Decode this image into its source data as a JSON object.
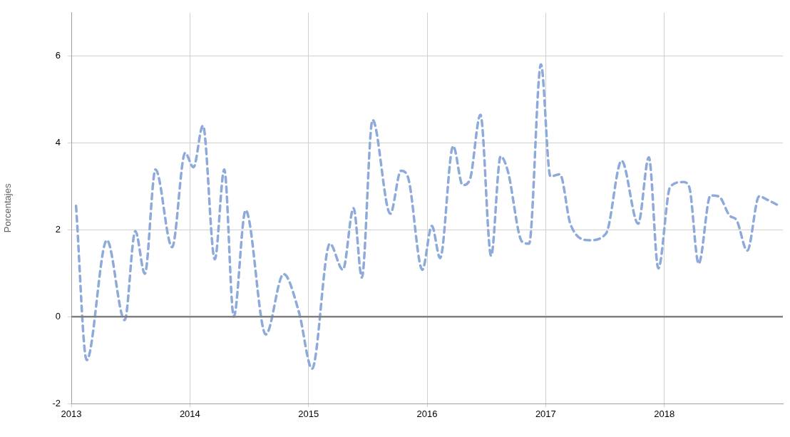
{
  "chart_data": {
    "type": "line",
    "ylabel": "Porcentajes",
    "x": [
      2013.04,
      2013.13,
      2013.3,
      2013.45,
      2013.54,
      2013.62,
      2013.71,
      2013.85,
      2013.96,
      2014.03,
      2014.11,
      2014.21,
      2014.29,
      2014.37,
      2014.47,
      2014.64,
      2014.79,
      2014.92,
      2015.03,
      2015.18,
      2015.29,
      2015.38,
      2015.45,
      2015.54,
      2015.69,
      2015.78,
      2015.84,
      2015.96,
      2016.04,
      2016.11,
      2016.22,
      2016.3,
      2016.36,
      2016.45,
      2016.54,
      2016.62,
      2016.68,
      2016.8,
      2016.86,
      2016.96,
      2017.04,
      2017.12,
      2017.21,
      2017.37,
      2017.51,
      2017.64,
      2017.78,
      2017.87,
      2017.95,
      2018.05,
      2018.16,
      2018.21,
      2018.29,
      2018.39,
      2018.46,
      2018.55,
      2018.61,
      2018.7,
      2018.8,
      2018.87,
      2018.95
    ],
    "series": [
      {
        "color": "#8eaadb",
        "line_style": "dashed",
        "values": [
          2.55,
          -1.0,
          1.76,
          -0.08,
          1.97,
          0.99,
          3.39,
          1.6,
          3.77,
          3.44,
          4.4,
          1.32,
          3.39,
          0.0,
          2.45,
          -0.41,
          0.98,
          0.1,
          -1.2,
          1.68,
          1.08,
          2.5,
          0.9,
          4.53,
          2.37,
          3.36,
          3.2,
          1.08,
          2.09,
          1.35,
          3.93,
          3.03,
          3.15,
          4.65,
          1.4,
          3.69,
          3.36,
          1.73,
          1.68,
          5.81,
          3.23,
          3.28,
          2.12,
          1.76,
          1.92,
          3.59,
          2.14,
          3.67,
          1.11,
          2.99,
          3.1,
          2.99,
          1.22,
          2.79,
          2.77,
          2.33,
          2.22,
          1.52,
          2.77,
          2.69,
          2.58
        ]
      }
    ],
    "xlim": [
      2013,
      2019
    ],
    "xticks": [
      2013,
      2014,
      2015,
      2016,
      2017,
      2018
    ],
    "ylim": [
      -2,
      7
    ],
    "yticks": [
      -2,
      0,
      2,
      4,
      6
    ],
    "ref_lines": [
      {
        "axis": "y",
        "value": 0,
        "color": "#808080"
      }
    ],
    "grid": true,
    "legend": false,
    "marker": "none"
  }
}
